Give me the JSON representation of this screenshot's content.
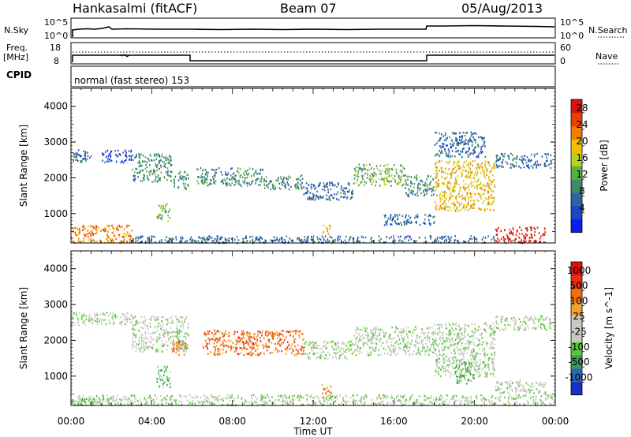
{
  "header": {
    "station": "Hankasalmi (fitACF)",
    "beam": "Beam 07",
    "date": "05/Aug/2013"
  },
  "status_panels": {
    "nsky_label": "N.Sky",
    "nsky_ticks": [
      "10^5",
      "10^0"
    ],
    "nsearch_label": "N.Search",
    "nsearch_ticks": [
      "10^5",
      "10^0"
    ],
    "freq_label_1": "Freq.",
    "freq_label_2": "[MHz]",
    "freq_ticks": [
      "18",
      "8"
    ],
    "nave_label": "Nave",
    "nave_ticks": [
      "60",
      "0"
    ],
    "cpid_label": "CPID",
    "cpid_value": "normal (fast stereo) 153"
  },
  "chart_data": [
    {
      "type": "heatmap",
      "panel": "power",
      "ylabel": "Slant Range [km]",
      "xlabel": "Time UT",
      "x_ticks": [
        "00:00",
        "04:00",
        "08:00",
        "12:00",
        "16:00",
        "20:00",
        "00:00"
      ],
      "xlim_hours": [
        0,
        24
      ],
      "y_ticks": [
        1000,
        2000,
        3000,
        4000
      ],
      "ylim_km": [
        180,
        4500
      ],
      "colorbar": {
        "label": "Power [dB]",
        "ticks": [
          4,
          8,
          12,
          16,
          20,
          24,
          28
        ],
        "colors": [
          "#0c1cf0",
          "#1c46c8",
          "#2f62a0",
          "#3e8a6a",
          "#58b040",
          "#b8d020",
          "#f0c000",
          "#f08000",
          "#e84000",
          "#e01010"
        ]
      },
      "echo_regions": [
        {
          "t0": 0.0,
          "t1": 1.0,
          "r0": 2450,
          "r1": 2800,
          "level": 2
        },
        {
          "t0": 1.5,
          "t1": 3.0,
          "r0": 2450,
          "r1": 2800,
          "level": 1
        },
        {
          "t0": 3.0,
          "t1": 5.0,
          "r0": 1900,
          "r1": 2700,
          "level": 3
        },
        {
          "t0": 5.0,
          "t1": 5.8,
          "r0": 1700,
          "r1": 2200,
          "level": 3
        },
        {
          "t0": 4.2,
          "t1": 4.9,
          "r0": 800,
          "r1": 1300,
          "level": 4
        },
        {
          "t0": 6.2,
          "t1": 9.5,
          "r0": 1800,
          "r1": 2300,
          "level": 3
        },
        {
          "t0": 9.5,
          "t1": 11.5,
          "r0": 1700,
          "r1": 2100,
          "level": 3
        },
        {
          "t0": 11.5,
          "t1": 14.0,
          "r0": 1400,
          "r1": 1900,
          "level": 2
        },
        {
          "t0": 14.0,
          "t1": 16.5,
          "r0": 1800,
          "r1": 2400,
          "level": 4
        },
        {
          "t0": 16.5,
          "t1": 18.0,
          "r0": 1500,
          "r1": 2100,
          "level": 3
        },
        {
          "t0": 18.0,
          "t1": 21.0,
          "r0": 1100,
          "r1": 2500,
          "level": 6
        },
        {
          "t0": 18.0,
          "t1": 20.5,
          "r0": 2600,
          "r1": 3300,
          "level": 2
        },
        {
          "t0": 21.0,
          "t1": 23.8,
          "r0": 2300,
          "r1": 2700,
          "level": 2
        },
        {
          "t0": 15.5,
          "t1": 18.0,
          "r0": 700,
          "r1": 1000,
          "level": 2
        },
        {
          "t0": 0.0,
          "t1": 3.0,
          "r0": 200,
          "r1": 700,
          "level": 7
        },
        {
          "t0": 3.0,
          "t1": 21.0,
          "r0": 200,
          "r1": 400,
          "level": 2
        },
        {
          "t0": 21.0,
          "t1": 23.5,
          "r0": 200,
          "r1": 650,
          "level": 9
        },
        {
          "t0": 12.4,
          "t1": 12.9,
          "r0": 400,
          "r1": 700,
          "level": 6
        }
      ]
    },
    {
      "type": "heatmap",
      "panel": "velocity",
      "ylabel": "Slant Range [km]",
      "xlabel": "Time UT",
      "x_ticks": [
        "00:00",
        "04:00",
        "08:00",
        "12:00",
        "16:00",
        "20:00",
        "00:00"
      ],
      "xlim_hours": [
        0,
        24
      ],
      "y_ticks": [
        1000,
        2000,
        3000,
        4000
      ],
      "ylim_km": [
        180,
        4500
      ],
      "colorbar": {
        "label": "Velocity [m s^-1]",
        "ticks": [
          1000,
          500,
          100,
          25,
          -25,
          -100,
          -500,
          -1000
        ],
        "colors": [
          "#1830c8",
          "#2b68b0",
          "#3c9a5a",
          "#58c838",
          "#c8c8c0",
          "#c8c8c0",
          "#f0a030",
          "#f07010",
          "#e83010",
          "#e01010"
        ]
      },
      "echo_regions": [
        {
          "t0": 0.0,
          "t1": 3.0,
          "r0": 2450,
          "r1": 2800,
          "level": 4
        },
        {
          "t0": 3.0,
          "t1": 5.8,
          "r0": 1700,
          "r1": 2700,
          "level": 4
        },
        {
          "t0": 5.0,
          "t1": 5.7,
          "r0": 1600,
          "r1": 2000,
          "level": 7
        },
        {
          "t0": 4.2,
          "t1": 4.9,
          "r0": 700,
          "r1": 1300,
          "level": 3
        },
        {
          "t0": 6.5,
          "t1": 11.5,
          "r0": 1600,
          "r1": 2300,
          "level": 7
        },
        {
          "t0": 11.5,
          "t1": 14.0,
          "r0": 1500,
          "r1": 2000,
          "level": 4
        },
        {
          "t0": 14.0,
          "t1": 18.0,
          "r0": 1600,
          "r1": 2400,
          "level": 4
        },
        {
          "t0": 18.0,
          "t1": 21.0,
          "r0": 1000,
          "r1": 2500,
          "level": 4
        },
        {
          "t0": 19.0,
          "t1": 20.0,
          "r0": 800,
          "r1": 1500,
          "level": 3
        },
        {
          "t0": 21.0,
          "t1": 23.8,
          "r0": 2300,
          "r1": 2700,
          "level": 4
        },
        {
          "t0": 0.0,
          "t1": 24.0,
          "r0": 200,
          "r1": 500,
          "level": 4
        },
        {
          "t0": 0.0,
          "t1": 2.5,
          "r0": 200,
          "r1": 400,
          "level": 3
        },
        {
          "t0": 12.4,
          "t1": 12.9,
          "r0": 400,
          "r1": 800,
          "level": 7
        },
        {
          "t0": 21.0,
          "t1": 23.5,
          "r0": 500,
          "r1": 900,
          "level": 4
        }
      ]
    }
  ]
}
